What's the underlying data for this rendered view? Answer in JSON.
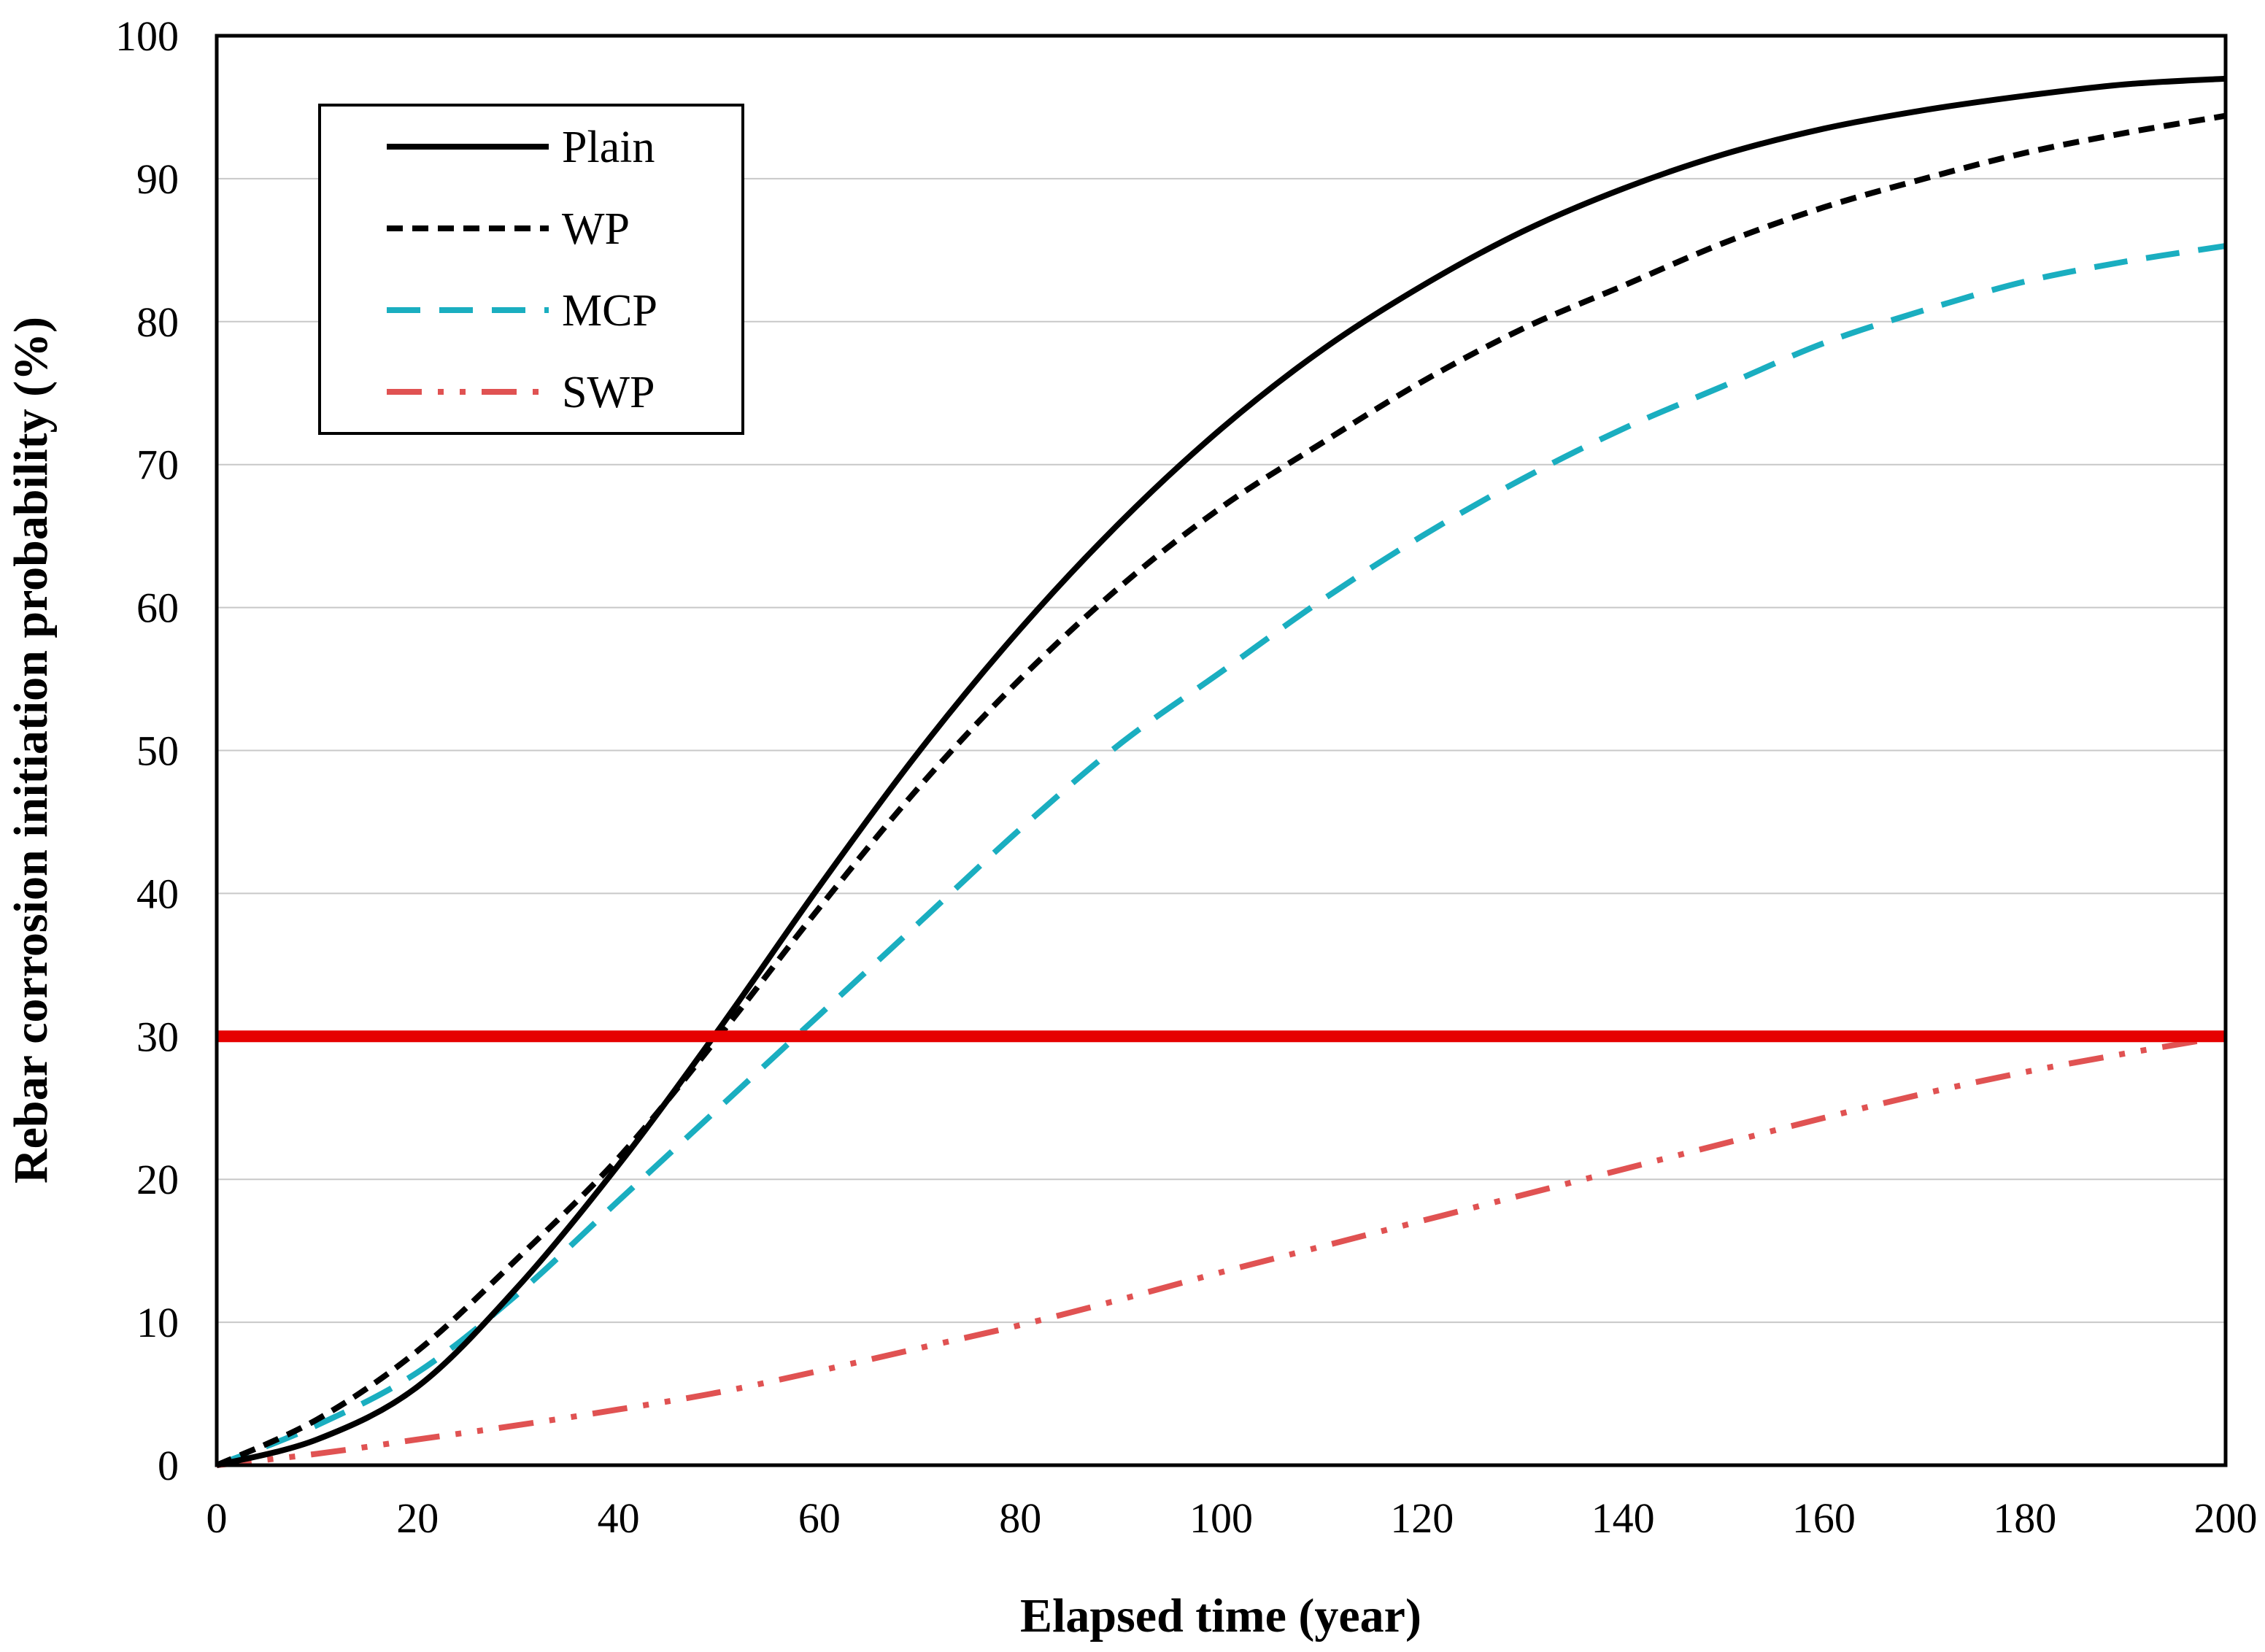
{
  "chart_data": {
    "type": "line",
    "title": "",
    "xlabel": "Elapsed time (year)",
    "ylabel": "Rebar corrosion initiation probability (%)",
    "xlim": [
      0,
      200
    ],
    "ylim": [
      0,
      100
    ],
    "x_ticks": [
      0,
      20,
      40,
      60,
      80,
      100,
      120,
      140,
      160,
      180,
      200
    ],
    "y_ticks": [
      0,
      10,
      20,
      30,
      40,
      50,
      60,
      70,
      80,
      90,
      100
    ],
    "grid": "horizontal",
    "legend_position": "top-left",
    "x": [
      0,
      10,
      20,
      30,
      40,
      50,
      60,
      70,
      80,
      90,
      100,
      110,
      120,
      130,
      140,
      150,
      160,
      170,
      180,
      190,
      200
    ],
    "series": [
      {
        "name": "Plain",
        "color": "#000000",
        "style": "solid",
        "values": [
          0,
          1.8,
          5.5,
          12.5,
          21,
          30.5,
          40.5,
          50,
          58.5,
          66,
          72.5,
          78,
          82.5,
          86.3,
          89.3,
          91.7,
          93.5,
          94.8,
          95.8,
          96.6,
          97
        ]
      },
      {
        "name": "WP",
        "color": "#000000",
        "style": "short-dash",
        "values": [
          0,
          3.2,
          8,
          14.5,
          21.5,
          30,
          39,
          47.5,
          55,
          61.5,
          67,
          71.5,
          75.8,
          79.5,
          82.5,
          85.5,
          88,
          90,
          91.8,
          93.2,
          94.4
        ]
      },
      {
        "name": "MCP",
        "color": "#1aaec0",
        "style": "long-dash",
        "values": [
          0,
          2.8,
          6.5,
          12,
          18.5,
          25,
          31.5,
          38,
          44.5,
          50.5,
          55.5,
          60.5,
          65,
          69,
          72.5,
          75.5,
          78.5,
          80.8,
          82.8,
          84.2,
          85.3
        ]
      },
      {
        "name": "SWP",
        "color": "#e05252",
        "style": "dash-dot-dot",
        "values": [
          0,
          0.8,
          1.8,
          2.8,
          3.9,
          5.1,
          6.6,
          8.2,
          9.8,
          11.6,
          13.5,
          15.3,
          17.1,
          18.9,
          20.7,
          22.5,
          24.3,
          26,
          27.5,
          28.8,
          30
        ]
      }
    ],
    "reference_line": {
      "y": 30,
      "color": "#e60000"
    }
  }
}
